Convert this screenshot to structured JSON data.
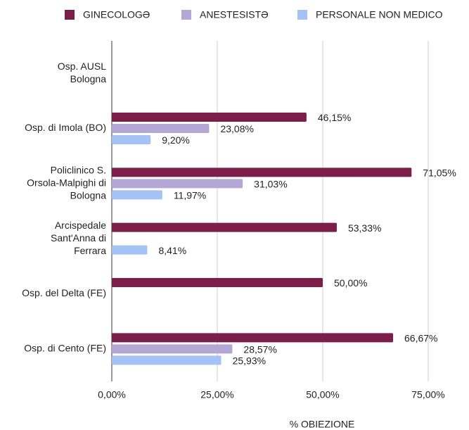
{
  "chart_data": {
    "type": "hbar",
    "xlabel": "% OBIEZIONE",
    "categories": [
      [
        "Osp. AUSL",
        "Bologna"
      ],
      [
        "Osp. di Imola (BO)"
      ],
      [
        "Policlinico S.",
        "Orsola-Malpighi di",
        "Bologna"
      ],
      [
        "Arcispedale",
        "Sant'Anna di",
        "Ferrara"
      ],
      [
        "Osp. del Delta (FE)"
      ],
      [
        "Osp. di Cento (FE)"
      ]
    ],
    "series": [
      {
        "name": "GINECOLOGƏ",
        "color": "#7b1e4a",
        "values": [
          null,
          46.15,
          71.05,
          53.33,
          50.0,
          66.67
        ],
        "value_labels": [
          null,
          "46,15%",
          "71,05%",
          "53,33%",
          "50,00%",
          "66,67%"
        ]
      },
      {
        "name": "ANESTESISTƏ",
        "color": "#b4a7d6",
        "values": [
          null,
          23.08,
          31.03,
          null,
          null,
          28.57
        ],
        "value_labels": [
          null,
          "23,08%",
          "31,03%",
          null,
          null,
          "28,57%"
        ]
      },
      {
        "name": "PERSONALE NON MEDICO",
        "color": "#a4c2f4",
        "values": [
          null,
          9.2,
          11.97,
          8.41,
          null,
          25.93
        ],
        "value_labels": [
          null,
          "9,20%",
          "11,97%",
          "8,41%",
          null,
          "25,93%"
        ]
      }
    ],
    "xlim": [
      0,
      84
    ],
    "xticks": [
      {
        "value": 0,
        "label": "0,00%"
      },
      {
        "value": 25,
        "label": "25,00%"
      },
      {
        "value": 50,
        "label": "50,00%"
      },
      {
        "value": 75,
        "label": "75,00%"
      }
    ],
    "grid": true,
    "legend": "top"
  }
}
